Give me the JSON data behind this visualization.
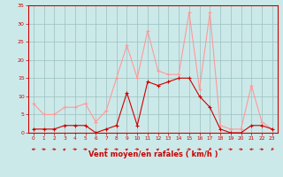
{
  "x": [
    0,
    1,
    2,
    3,
    4,
    5,
    6,
    7,
    8,
    9,
    10,
    11,
    12,
    13,
    14,
    15,
    16,
    17,
    18,
    19,
    20,
    21,
    22,
    23
  ],
  "mean_wind": [
    1,
    1,
    1,
    2,
    2,
    2,
    0,
    1,
    2,
    11,
    2,
    14,
    13,
    14,
    15,
    15,
    10,
    7,
    1,
    0,
    0,
    2,
    2,
    1
  ],
  "gust_wind": [
    8,
    5,
    5,
    7,
    7,
    8,
    3,
    6,
    15,
    24,
    15,
    28,
    17,
    16,
    16,
    33,
    12,
    33,
    2,
    1,
    1,
    13,
    3,
    1
  ],
  "mean_color": "#cc0000",
  "gust_color": "#ff9999",
  "xlabel": "Vent moyen/en rafales ( km/h )",
  "ylim": [
    0,
    35
  ],
  "xlim_min": -0.5,
  "xlim_max": 23.5,
  "yticks": [
    0,
    5,
    10,
    15,
    20,
    25,
    30,
    35
  ],
  "xticks": [
    0,
    1,
    2,
    3,
    4,
    5,
    6,
    7,
    8,
    9,
    10,
    11,
    12,
    13,
    14,
    15,
    16,
    17,
    18,
    19,
    20,
    21,
    22,
    23
  ],
  "bg_color": "#cce9e9",
  "grid_color": "#9bbfbf",
  "arrow_directions": [
    270,
    90,
    90,
    45,
    90,
    90,
    90,
    270,
    90,
    45,
    90,
    45,
    45,
    45,
    45,
    90,
    90,
    225,
    270,
    90,
    90,
    270,
    90,
    225
  ]
}
